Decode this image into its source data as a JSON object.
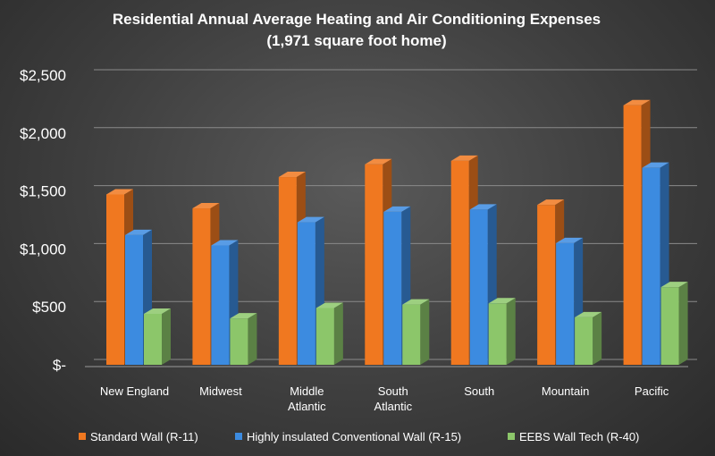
{
  "chart_data": {
    "type": "bar",
    "title": "Residential Annual Average Heating and Air Conditioning Expenses",
    "subtitle": "(1,971 square foot home)",
    "categories": [
      [
        "New England"
      ],
      [
        "Midwest"
      ],
      [
        "Middle",
        "Atlantic"
      ],
      [
        "South",
        "Atlantic"
      ],
      [
        "South"
      ],
      [
        "Mountain"
      ],
      [
        "Pacific"
      ]
    ],
    "series": [
      {
        "name": "Standard Wall (R-11)",
        "values": [
          1470,
          1350,
          1620,
          1730,
          1760,
          1380,
          2240
        ],
        "color": "#f07820"
      },
      {
        "name": "Highly insulated Conventional Wall (R-15)",
        "values": [
          1120,
          1030,
          1230,
          1320,
          1340,
          1050,
          1700
        ],
        "color": "#3c8be0"
      },
      {
        "name": "EEBS Wall Tech (R-40)",
        "values": [
          440,
          400,
          490,
          520,
          530,
          410,
          670
        ],
        "color": "#8cc66a"
      }
    ],
    "ylim": [
      0,
      2500
    ],
    "yticks": [
      {
        "value": 2500,
        "label": "$2,500"
      },
      {
        "value": 2000,
        "label": "$2,000"
      },
      {
        "value": 1500,
        "label": "$1,500"
      },
      {
        "value": 1000,
        "label": "$1,000"
      },
      {
        "value": 500,
        "label": "$500"
      },
      {
        "value": 0,
        "label": "$-"
      }
    ],
    "grid": true,
    "legend_position": "bottom",
    "style": "3d-clustered-column"
  }
}
